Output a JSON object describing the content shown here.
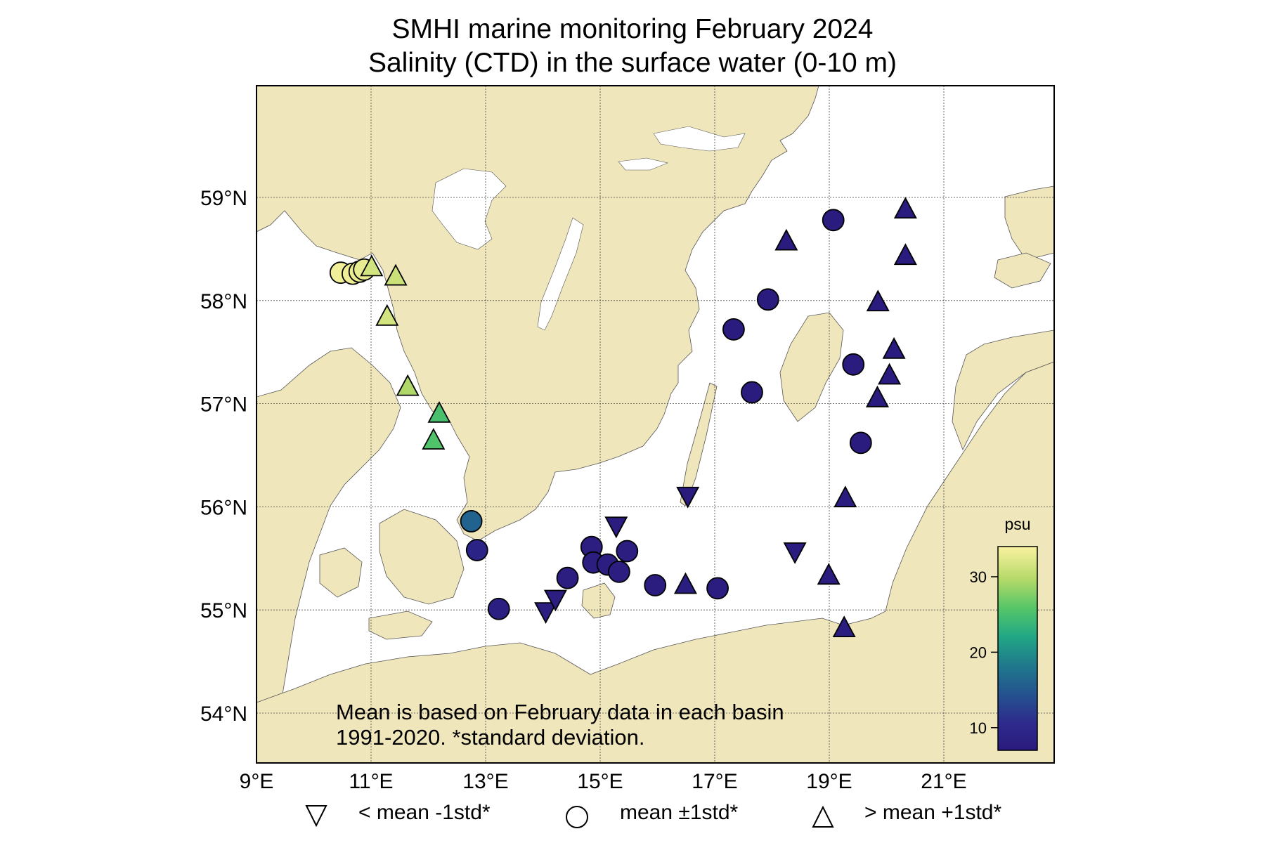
{
  "title": {
    "line1": "SMHI marine monitoring February 2024",
    "line2": "Salinity (CTD) in the surface water (0-10 m)"
  },
  "map": {
    "lon_range": [
      9,
      23
    ],
    "lat_range": [
      53.5,
      60
    ],
    "gridlines": true,
    "lon_ticks": [
      {
        "value": 9,
        "label": "9°E"
      },
      {
        "value": 11,
        "label": "11°E"
      },
      {
        "value": 13,
        "label": "13°E"
      },
      {
        "value": 15,
        "label": "15°E"
      },
      {
        "value": 17,
        "label": "17°E"
      },
      {
        "value": 19,
        "label": "19°E"
      },
      {
        "value": 21,
        "label": "21°E"
      }
    ],
    "lat_ticks": [
      {
        "value": 54,
        "label": "54°N"
      },
      {
        "value": 55,
        "label": "55°N"
      },
      {
        "value": 56,
        "label": "56°N"
      },
      {
        "value": 57,
        "label": "57°N"
      },
      {
        "value": 58,
        "label": "58°N"
      },
      {
        "value": 59,
        "label": "59°N"
      }
    ],
    "land_color": "#f0e6bc",
    "sea_color": "#ffffff",
    "lake_color": "#ffffff"
  },
  "colorbar": {
    "label": "psu",
    "range": [
      7,
      34
    ],
    "ticks": [
      {
        "value": 10,
        "label": "10"
      },
      {
        "value": 20,
        "label": "20"
      },
      {
        "value": 30,
        "label": "30"
      }
    ]
  },
  "note": {
    "line1": "Mean is based on February data in each basin",
    "line2": "1991-2020. *standard deviation."
  },
  "legend": {
    "below": "< mean -1std*",
    "normal": "mean ±1std*",
    "above": "> mean +1std*"
  },
  "stations": [
    {
      "lon": 10.47,
      "lat": 58.27,
      "marker": "circle",
      "salinity": 33.5
    },
    {
      "lon": 10.68,
      "lat": 58.26,
      "marker": "circle",
      "salinity": 33.3
    },
    {
      "lon": 10.8,
      "lat": 58.28,
      "marker": "circle",
      "salinity": 33.0
    },
    {
      "lon": 10.88,
      "lat": 58.3,
      "marker": "circle",
      "salinity": 32.8
    },
    {
      "lon": 11.01,
      "lat": 58.33,
      "marker": "up",
      "salinity": 31.5
    },
    {
      "lon": 11.43,
      "lat": 58.24,
      "marker": "up",
      "salinity": 31.0
    },
    {
      "lon": 11.28,
      "lat": 57.85,
      "marker": "up",
      "salinity": 31.5
    },
    {
      "lon": 11.64,
      "lat": 57.17,
      "marker": "up",
      "salinity": 29.5
    },
    {
      "lon": 12.19,
      "lat": 56.91,
      "marker": "up",
      "salinity": 25.0
    },
    {
      "lon": 12.09,
      "lat": 56.65,
      "marker": "up",
      "salinity": 25.5
    },
    {
      "lon": 12.75,
      "lat": 55.86,
      "marker": "circle",
      "salinity": 16.0
    },
    {
      "lon": 12.85,
      "lat": 55.58,
      "marker": "circle",
      "salinity": 9.0
    },
    {
      "lon": 13.23,
      "lat": 55.01,
      "marker": "circle",
      "salinity": 8.0
    },
    {
      "lon": 14.05,
      "lat": 54.98,
      "marker": "down",
      "salinity": 7.8
    },
    {
      "lon": 14.22,
      "lat": 55.1,
      "marker": "down",
      "salinity": 7.8
    },
    {
      "lon": 14.43,
      "lat": 55.31,
      "marker": "circle",
      "salinity": 7.8
    },
    {
      "lon": 14.85,
      "lat": 55.61,
      "marker": "circle",
      "salinity": 7.8
    },
    {
      "lon": 14.88,
      "lat": 55.46,
      "marker": "circle",
      "salinity": 7.8
    },
    {
      "lon": 15.13,
      "lat": 55.44,
      "marker": "circle",
      "salinity": 7.8
    },
    {
      "lon": 15.33,
      "lat": 55.37,
      "marker": "circle",
      "salinity": 7.8
    },
    {
      "lon": 15.47,
      "lat": 55.57,
      "marker": "circle",
      "salinity": 7.8
    },
    {
      "lon": 15.28,
      "lat": 55.81,
      "marker": "down",
      "salinity": 7.6
    },
    {
      "lon": 15.96,
      "lat": 55.24,
      "marker": "circle",
      "salinity": 7.6
    },
    {
      "lon": 16.49,
      "lat": 55.25,
      "marker": "up",
      "salinity": 7.9
    },
    {
      "lon": 17.05,
      "lat": 55.21,
      "marker": "circle",
      "salinity": 7.6
    },
    {
      "lon": 16.53,
      "lat": 56.1,
      "marker": "down",
      "salinity": 7.4
    },
    {
      "lon": 18.4,
      "lat": 55.56,
      "marker": "down",
      "salinity": 7.5
    },
    {
      "lon": 18.99,
      "lat": 55.34,
      "marker": "up",
      "salinity": 7.5
    },
    {
      "lon": 19.26,
      "lat": 54.83,
      "marker": "up",
      "salinity": 7.5
    },
    {
      "lon": 19.28,
      "lat": 56.09,
      "marker": "up",
      "salinity": 7.4
    },
    {
      "lon": 19.55,
      "lat": 56.62,
      "marker": "circle",
      "salinity": 7.4
    },
    {
      "lon": 19.42,
      "lat": 57.38,
      "marker": "circle",
      "salinity": 7.3
    },
    {
      "lon": 19.84,
      "lat": 57.06,
      "marker": "up",
      "salinity": 7.4
    },
    {
      "lon": 20.05,
      "lat": 57.28,
      "marker": "up",
      "salinity": 7.4
    },
    {
      "lon": 20.13,
      "lat": 57.53,
      "marker": "up",
      "salinity": 7.3
    },
    {
      "lon": 19.85,
      "lat": 57.99,
      "marker": "up",
      "salinity": 7.3
    },
    {
      "lon": 20.33,
      "lat": 58.44,
      "marker": "up",
      "salinity": 7.2
    },
    {
      "lon": 20.33,
      "lat": 58.89,
      "marker": "up",
      "salinity": 7.2
    },
    {
      "lon": 19.07,
      "lat": 58.78,
      "marker": "circle",
      "salinity": 7.2
    },
    {
      "lon": 18.25,
      "lat": 58.58,
      "marker": "up",
      "salinity": 7.2
    },
    {
      "lon": 17.93,
      "lat": 58.01,
      "marker": "circle",
      "salinity": 7.3
    },
    {
      "lon": 17.33,
      "lat": 57.72,
      "marker": "circle",
      "salinity": 7.3
    },
    {
      "lon": 17.65,
      "lat": 57.11,
      "marker": "circle",
      "salinity": 7.3
    }
  ]
}
